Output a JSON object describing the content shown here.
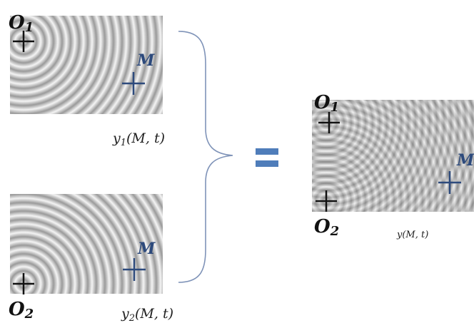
{
  "source_1": {
    "label": {
      "symbol": "O",
      "subscript": "1"
    },
    "point": "M",
    "wave": {
      "symbol": "y",
      "subscript": "1",
      "argument": "(M, t)"
    }
  },
  "source_2": {
    "label": {
      "symbol": "O",
      "subscript": "2"
    },
    "point": "M",
    "wave": {
      "symbol": "y",
      "subscript": "2",
      "argument": "(M, t)"
    }
  },
  "result": {
    "source_1": {
      "symbol": "O",
      "subscript": "1"
    },
    "source_2": {
      "symbol": "O",
      "subscript": "2"
    },
    "point": "M",
    "wave": {
      "symbol": "y",
      "argument": "(M, t)"
    }
  }
}
